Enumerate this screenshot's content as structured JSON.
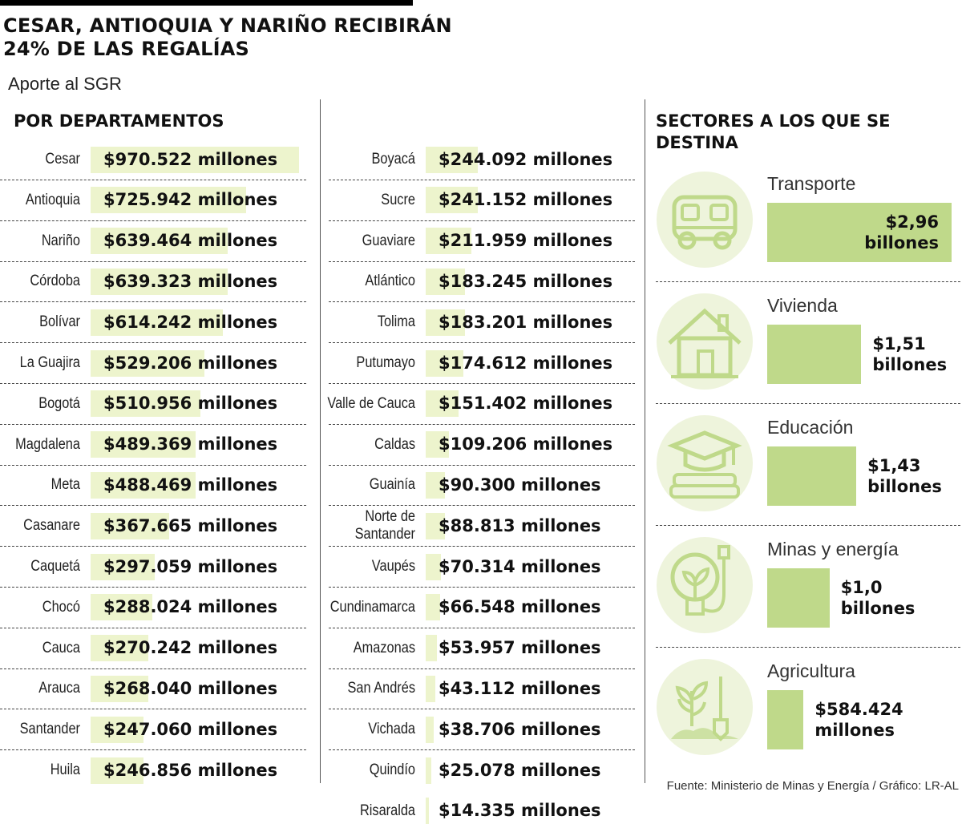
{
  "title": "CESAR, ANTIOQUIA Y NARIÑO RECIBIRÁN 24% DE LAS REGALÍAS",
  "subtitle": "Aporte al SGR",
  "departments_heading": "POR DEPARTAMENTOS",
  "sectors_heading": "SECTORES A LOS QUE SE DESTINA",
  "source": "Fuente: Ministerio de Minas y Energía / Gráfico: LR-AL",
  "colors": {
    "dept_bar": "#edf4cd",
    "sector_bar": "#bfd98a",
    "icon_circle": "#eef4dc",
    "icon_stroke": "#bfd98a"
  },
  "chart_data": [
    {
      "type": "bar",
      "title": "POR DEPARTAMENTOS",
      "unit": "millones",
      "categories": [
        "Cesar",
        "Antioquia",
        "Nariño",
        "Córdoba",
        "Bolívar",
        "La Guajira",
        "Bogotá",
        "Magdalena",
        "Meta",
        "Casanare",
        "Caquetá",
        "Chocó",
        "Cauca",
        "Arauca",
        "Santander",
        "Huila",
        "Boyacá",
        "Sucre",
        "Guaviare",
        "Atlántico",
        "Tolima",
        "Putumayo",
        "Valle de Cauca",
        "Caldas",
        "Guainía",
        "Norte de Santander",
        "Vaupés",
        "Cundinamarca",
        "Amazonas",
        "San Andrés",
        "Vichada",
        "Quindío",
        "Risaralda"
      ],
      "values": [
        970522,
        725942,
        639464,
        639323,
        614242,
        529206,
        510956,
        489369,
        488469,
        367665,
        297059,
        288024,
        270242,
        268040,
        247060,
        246856,
        244092,
        241152,
        211959,
        183245,
        183201,
        174612,
        151402,
        109206,
        90300,
        88813,
        70314,
        66548,
        53957,
        43112,
        38706,
        25078,
        14335
      ],
      "labels": [
        "$970.522 millones",
        "$725.942 millones",
        "$639.464 millones",
        "$639.323 millones",
        "$614.242 millones",
        "$529.206 millones",
        "$510.956 millones",
        "$489.369 millones",
        "$488.469 millones",
        "$367.665 millones",
        "$297.059 millones",
        "$288.024 millones",
        "$270.242 millones",
        "$268.040 millones",
        "$247.060 millones",
        "$246.856 millones",
        "$244.092 millones",
        "$241.152 millones",
        "$211.959 millones",
        "$183.245 millones",
        "$183.201 millones",
        "$174.612 millones",
        "$151.402 millones",
        "$109.206 millones",
        "$90.300 millones",
        "$88.813 millones",
        "$70.314 millones",
        "$66.548 millones",
        "$53.957 millones",
        "$43.112 millones",
        "$38.706 millones",
        "$25.078 millones",
        "$14.335 millones"
      ]
    },
    {
      "type": "bar",
      "title": "SECTORES A LOS QUE SE DESTINA",
      "unit": "billones",
      "categories": [
        "Transporte",
        "Vivienda",
        "Educación",
        "Minas y energía",
        "Agricultura"
      ],
      "values": [
        2.96,
        1.51,
        1.43,
        1.0,
        0.584424
      ],
      "labels": [
        [
          "$2,96",
          "billones"
        ],
        [
          "$1,51",
          "billones"
        ],
        [
          "$1,43",
          "billones"
        ],
        [
          "$1,0",
          "billones"
        ],
        [
          "$584.424",
          "millones"
        ]
      ],
      "icons": [
        "bus-icon",
        "house-icon",
        "graduation-cap-icon",
        "lightbulb-plant-icon",
        "plant-shovel-icon"
      ]
    }
  ]
}
